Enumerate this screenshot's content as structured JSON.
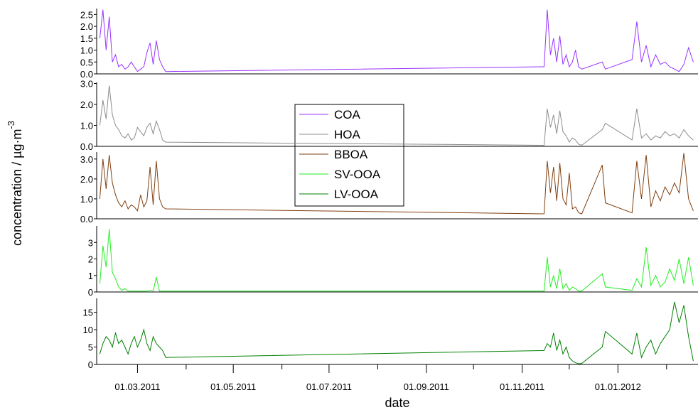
{
  "chart_data": {
    "type": "line",
    "x_label": "date",
    "y_label": "concentration / µg·m",
    "y_label_sup": "-3",
    "xlim": [
      "2011-02-03",
      "2012-02-21"
    ],
    "xticks": [
      {
        "value": "2011-03-01",
        "label": "01.03.2011"
      },
      {
        "value": "2011-05-01",
        "label": "01.05.2011"
      },
      {
        "value": "2011-07-01",
        "label": "01.07.2011"
      },
      {
        "value": "2011-09-01",
        "label": "01.09.2011"
      },
      {
        "value": "2011-11-01",
        "label": "01.11.2011"
      },
      {
        "value": "2012-01-01",
        "label": "01.01.2012"
      }
    ],
    "xticks_minor": [
      "2011-04-01",
      "2011-06-01",
      "2011-08-01",
      "2011-10-01",
      "2011-12-01",
      "2012-02-01"
    ],
    "x": [
      "2011-02-05",
      "2011-02-07",
      "2011-02-09",
      "2011-02-11",
      "2011-02-13",
      "2011-02-15",
      "2011-02-17",
      "2011-02-19",
      "2011-02-21",
      "2011-02-23",
      "2011-02-25",
      "2011-02-27",
      "2011-03-01",
      "2011-03-03",
      "2011-03-05",
      "2011-03-07",
      "2011-03-09",
      "2011-03-11",
      "2011-03-13",
      "2011-03-15",
      "2011-03-17",
      "2011-03-19",
      "2011-11-15",
      "2011-11-17",
      "2011-11-19",
      "2011-11-21",
      "2011-11-23",
      "2011-11-25",
      "2011-11-27",
      "2011-11-29",
      "2011-12-01",
      "2011-12-03",
      "2011-12-05",
      "2011-12-07",
      "2011-12-09",
      "2011-12-22",
      "2011-12-24",
      "2012-01-10",
      "2012-01-13",
      "2012-01-16",
      "2012-01-19",
      "2012-01-22",
      "2012-01-25",
      "2012-01-28",
      "2012-01-31",
      "2012-02-03",
      "2012-02-06",
      "2012-02-09",
      "2012-02-12",
      "2012-02-15",
      "2012-02-18"
    ],
    "series": [
      {
        "name": "COA",
        "color": "#9932ff",
        "ylim": [
          0,
          2.75
        ],
        "yticks": [
          {
            "value": 0,
            "label": "0.0"
          },
          0.5,
          {
            "value": 1,
            "label": "1.0"
          },
          1.5,
          {
            "value": 2,
            "label": "2.0"
          },
          2.5
        ],
        "values": [
          1.5,
          2.7,
          1.0,
          2.4,
          0.5,
          0.8,
          0.3,
          0.4,
          0.2,
          0.3,
          0.5,
          0.3,
          0.1,
          0.2,
          0.3,
          0.9,
          1.3,
          0.4,
          1.4,
          0.6,
          0.3,
          0.1,
          0.3,
          2.7,
          0.8,
          1.5,
          0.5,
          1.6,
          0.4,
          0.8,
          0.3,
          0.5,
          1.0,
          0.3,
          0.2,
          0.5,
          0.2,
          0.6,
          2.2,
          0.5,
          1.2,
          0.3,
          0.8,
          0.4,
          0.5,
          0.3,
          0.2,
          0.1,
          0.4,
          1.1,
          0.5
        ]
      },
      {
        "name": "HOA",
        "color": "#8c8c8c",
        "ylim": [
          0,
          3.05
        ],
        "yticks": [
          {
            "value": 0,
            "label": "0.0"
          },
          {
            "value": 1,
            "label": "1.0"
          },
          {
            "value": 2,
            "label": "2.0"
          },
          {
            "value": 3,
            "label": "3.0"
          }
        ],
        "values": [
          1.0,
          2.2,
          1.3,
          2.9,
          1.5,
          1.0,
          0.8,
          0.5,
          0.4,
          0.6,
          0.3,
          0.4,
          0.9,
          0.7,
          0.5,
          0.9,
          1.1,
          0.6,
          1.2,
          0.8,
          0.3,
          0.2,
          0.05,
          1.8,
          0.9,
          1.5,
          0.6,
          1.7,
          0.7,
          0.5,
          0.2,
          0.4,
          0.3,
          0.1,
          0.05,
          0.8,
          1.1,
          0.3,
          1.8,
          0.4,
          0.6,
          0.3,
          0.5,
          0.4,
          0.7,
          0.5,
          0.6,
          0.4,
          0.8,
          0.5,
          0.3
        ]
      },
      {
        "name": "BBOA",
        "color": "#7f3f10",
        "ylim": [
          0,
          3.35
        ],
        "yticks": [
          {
            "value": 0,
            "label": "0.0"
          },
          {
            "value": 1,
            "label": "1.0"
          },
          {
            "value": 2,
            "label": "2.0"
          },
          {
            "value": 3,
            "label": "3.0"
          }
        ],
        "values": [
          1.0,
          3.0,
          1.5,
          3.2,
          1.8,
          1.2,
          0.8,
          0.6,
          0.9,
          0.5,
          0.7,
          0.6,
          0.4,
          1.2,
          0.6,
          0.9,
          2.6,
          0.7,
          2.9,
          1.0,
          0.6,
          0.5,
          0.25,
          2.9,
          1.3,
          2.6,
          0.9,
          2.8,
          1.0,
          0.7,
          2.3,
          0.5,
          0.6,
          0.3,
          0.25,
          2.7,
          0.8,
          0.3,
          2.9,
          1.0,
          3.2,
          0.6,
          1.4,
          0.9,
          1.6,
          1.2,
          1.8,
          1.3,
          3.3,
          1.0,
          0.4
        ]
      },
      {
        "name": "SV-OOA",
        "color": "#22ee22",
        "ylim": [
          0,
          4
        ],
        "yticks": [
          0,
          1,
          2,
          3
        ],
        "values": [
          0.5,
          2.8,
          1.5,
          3.8,
          1.2,
          0.8,
          0.3,
          0.1,
          0.2,
          0.05,
          0.05,
          0.05,
          0.05,
          0.05,
          0.05,
          0.05,
          0.1,
          0.05,
          0.9,
          0.05,
          0.05,
          0.05,
          0.05,
          2.1,
          0.3,
          1.0,
          0.2,
          1.4,
          0.2,
          0.5,
          0.1,
          0.3,
          0.2,
          0.05,
          0.05,
          1.1,
          0.3,
          0.1,
          0.8,
          0.3,
          2.7,
          0.4,
          1.0,
          0.3,
          0.6,
          1.4,
          0.7,
          2.0,
          0.5,
          2.1,
          0.4
        ]
      },
      {
        "name": "LV-OOA",
        "color": "#008000",
        "ylim": [
          0,
          19
        ],
        "yticks": [
          0,
          5,
          10,
          15
        ],
        "values": [
          3,
          6,
          8,
          7,
          5,
          9,
          6,
          7,
          5,
          3,
          6,
          8,
          5,
          7,
          10,
          6,
          4,
          8,
          6,
          5,
          4,
          2,
          4,
          6,
          5,
          9,
          4,
          7,
          3,
          5,
          2,
          1,
          0.5,
          0.2,
          0.3,
          5,
          9.5,
          3,
          9,
          2,
          5,
          7,
          3,
          6,
          8,
          10,
          18,
          12,
          17,
          8,
          1
        ]
      }
    ]
  }
}
